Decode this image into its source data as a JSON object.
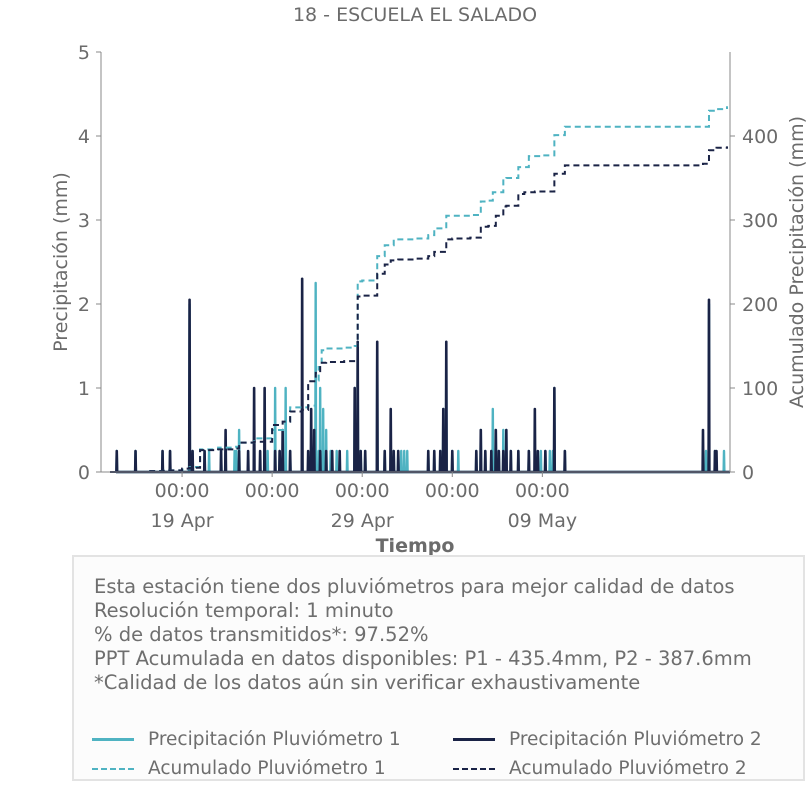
{
  "chart_data": {
    "type": "line",
    "title": "18 - ESCUELA EL SALADO",
    "xlabel": "Tiempo",
    "ylabel": "Precipitación (mm)",
    "y2label": "Acumulado Precipitación (mm)",
    "ylim": [
      0,
      5
    ],
    "y2lim": [
      0,
      500
    ],
    "yticks": [
      0,
      1,
      2,
      3,
      4,
      5
    ],
    "y2ticks": [
      0,
      100,
      200,
      300,
      400
    ],
    "xlim": [
      "2023-04-14T12:00",
      "2023-05-19T10:00"
    ],
    "xticks": [
      {
        "x": "2023-04-19T00:00",
        "label": "00:00",
        "sub": "19 Apr"
      },
      {
        "x": "2023-04-24T00:00",
        "label": "00:00",
        "sub": ""
      },
      {
        "x": "2023-04-29T00:00",
        "label": "00:00",
        "sub": "29 Apr"
      },
      {
        "x": "2023-05-04T00:00",
        "label": "00:00",
        "sub": ""
      },
      {
        "x": "2023-05-09T00:00",
        "label": "00:00",
        "sub": "09 May"
      }
    ],
    "grid": false,
    "series": [
      {
        "name": "Precipitación Pluviómetro 1",
        "axis": "left",
        "style": "solid",
        "color": "#4fb3c2",
        "points": [
          [
            "2023-04-15T09:00",
            0.25
          ],
          [
            "2023-04-16T10:00",
            0.25
          ],
          [
            "2023-04-17T22:00",
            0.25
          ],
          [
            "2023-04-18T08:00",
            0.25
          ],
          [
            "2023-04-19T10:00",
            2.0
          ],
          [
            "2023-04-19T14:00",
            0.25
          ],
          [
            "2023-04-20T06:00",
            0.25
          ],
          [
            "2023-04-20T12:00",
            0.25
          ],
          [
            "2023-04-21T04:00",
            0.25
          ],
          [
            "2023-04-21T10:00",
            0.25
          ],
          [
            "2023-04-21T22:00",
            0.25
          ],
          [
            "2023-04-22T00:00",
            0.25
          ],
          [
            "2023-04-22T04:00",
            0.5
          ],
          [
            "2023-04-23T14:00",
            0.25
          ],
          [
            "2023-04-23T18:00",
            0.25
          ],
          [
            "2023-04-24T04:00",
            1.0
          ],
          [
            "2023-04-24T10:00",
            0.25
          ],
          [
            "2023-04-24T14:00",
            0.25
          ],
          [
            "2023-04-24T18:00",
            1.0
          ],
          [
            "2023-04-25T00:00",
            0.25
          ],
          [
            "2023-04-25T16:00",
            0.25
          ],
          [
            "2023-04-26T10:00",
            2.25
          ],
          [
            "2023-04-26T14:00",
            0.25
          ],
          [
            "2023-04-26T16:00",
            1.0
          ],
          [
            "2023-04-26T20:00",
            0.75
          ],
          [
            "2023-04-27T00:00",
            0.5
          ],
          [
            "2023-04-27T06:00",
            0.25
          ],
          [
            "2023-04-27T14:00",
            0.25
          ],
          [
            "2023-04-28T04:00",
            0.25
          ],
          [
            "2023-04-28T14:00",
            1.0
          ],
          [
            "2023-04-28T18:00",
            1.5
          ],
          [
            "2023-04-28T22:00",
            0.25
          ],
          [
            "2023-04-29T04:00",
            0.25
          ],
          [
            "2023-04-29T20:00",
            1.5
          ],
          [
            "2023-04-30T06:00",
            0.25
          ],
          [
            "2023-04-30T18:00",
            0.25
          ],
          [
            "2023-05-01T00:00",
            0.25
          ],
          [
            "2023-05-01T04:00",
            0.25
          ],
          [
            "2023-05-01T08:00",
            0.25
          ],
          [
            "2023-05-01T12:00",
            0.25
          ],
          [
            "2023-05-02T16:00",
            0.25
          ],
          [
            "2023-05-03T00:00",
            0.25
          ],
          [
            "2023-05-03T08:00",
            0.25
          ],
          [
            "2023-05-03T12:00",
            0.75
          ],
          [
            "2023-05-03T16:00",
            1.5
          ],
          [
            "2023-05-04T00:00",
            0.25
          ],
          [
            "2023-05-04T08:00",
            0.25
          ],
          [
            "2023-05-05T08:00",
            0.25
          ],
          [
            "2023-05-05T14:00",
            0.5
          ],
          [
            "2023-05-05T20:00",
            0.25
          ],
          [
            "2023-05-06T04:00",
            0.25
          ],
          [
            "2023-05-06T06:00",
            0.75
          ],
          [
            "2023-05-06T10:00",
            0.5
          ],
          [
            "2023-05-06T14:00",
            0.25
          ],
          [
            "2023-05-06T20:00",
            0.5
          ],
          [
            "2023-05-07T00:00",
            0.5
          ],
          [
            "2023-05-07T06:00",
            0.25
          ],
          [
            "2023-05-07T16:00",
            0.25
          ],
          [
            "2023-05-08T06:00",
            0.25
          ],
          [
            "2023-05-08T14:00",
            0.25
          ],
          [
            "2023-05-08T22:00",
            0.25
          ],
          [
            "2023-05-09T04:00",
            0.25
          ],
          [
            "2023-05-09T10:00",
            0.25
          ],
          [
            "2023-05-09T14:00",
            0.25
          ],
          [
            "2023-05-09T16:00",
            1.0
          ],
          [
            "2023-05-10T06:00",
            0.25
          ],
          [
            "2023-05-18T02:00",
            0.25
          ],
          [
            "2023-05-18T06:00",
            2.0
          ],
          [
            "2023-05-18T14:00",
            0.25
          ],
          [
            "2023-05-19T02:00",
            0.25
          ]
        ]
      },
      {
        "name": "Precipitación Pluviómetro 2",
        "axis": "left",
        "style": "solid",
        "color": "#1a2346",
        "points": [
          [
            "2023-04-15T09:00",
            0.25
          ],
          [
            "2023-04-16T10:00",
            0.25
          ],
          [
            "2023-04-17T22:00",
            0.25
          ],
          [
            "2023-04-18T08:00",
            0.25
          ],
          [
            "2023-04-19T10:00",
            2.05
          ],
          [
            "2023-04-19T14:00",
            0.25
          ],
          [
            "2023-04-20T06:00",
            0.25
          ],
          [
            "2023-04-21T04:00",
            0.25
          ],
          [
            "2023-04-21T10:00",
            0.5
          ],
          [
            "2023-04-22T04:00",
            0.25
          ],
          [
            "2023-04-22T16:00",
            0.25
          ],
          [
            "2023-04-23T00:00",
            1.0
          ],
          [
            "2023-04-23T08:00",
            0.25
          ],
          [
            "2023-04-23T14:00",
            1.0
          ],
          [
            "2023-04-24T04:00",
            0.25
          ],
          [
            "2023-04-24T10:00",
            0.25
          ],
          [
            "2023-04-24T14:00",
            0.5
          ],
          [
            "2023-04-25T00:00",
            0.25
          ],
          [
            "2023-04-25T16:00",
            2.3
          ],
          [
            "2023-04-26T00:00",
            0.25
          ],
          [
            "2023-04-26T04:00",
            0.75
          ],
          [
            "2023-04-26T08:00",
            0.5
          ],
          [
            "2023-04-26T16:00",
            0.25
          ],
          [
            "2023-04-27T00:00",
            0.25
          ],
          [
            "2023-04-27T08:00",
            0.25
          ],
          [
            "2023-04-27T18:00",
            0.25
          ],
          [
            "2023-04-28T14:00",
            1.0
          ],
          [
            "2023-04-28T18:00",
            1.55
          ],
          [
            "2023-04-28T22:00",
            0.25
          ],
          [
            "2023-04-29T04:00",
            0.25
          ],
          [
            "2023-04-29T20:00",
            1.55
          ],
          [
            "2023-04-30T06:00",
            0.25
          ],
          [
            "2023-04-30T14:00",
            0.75
          ],
          [
            "2023-04-30T18:00",
            0.25
          ],
          [
            "2023-05-01T00:00",
            0.25
          ],
          [
            "2023-05-02T16:00",
            0.25
          ],
          [
            "2023-05-03T00:00",
            0.25
          ],
          [
            "2023-05-03T08:00",
            0.25
          ],
          [
            "2023-05-03T12:00",
            0.75
          ],
          [
            "2023-05-03T16:00",
            1.55
          ],
          [
            "2023-05-04T00:00",
            0.25
          ],
          [
            "2023-05-05T08:00",
            0.25
          ],
          [
            "2023-05-05T14:00",
            0.5
          ],
          [
            "2023-05-05T20:00",
            0.25
          ],
          [
            "2023-05-06T04:00",
            0.25
          ],
          [
            "2023-05-06T10:00",
            0.5
          ],
          [
            "2023-05-06T14:00",
            0.25
          ],
          [
            "2023-05-06T20:00",
            0.25
          ],
          [
            "2023-05-07T00:00",
            0.5
          ],
          [
            "2023-05-07T06:00",
            0.25
          ],
          [
            "2023-05-07T16:00",
            0.25
          ],
          [
            "2023-05-08T06:00",
            0.25
          ],
          [
            "2023-05-08T14:00",
            0.75
          ],
          [
            "2023-05-08T18:00",
            0.25
          ],
          [
            "2023-05-09T04:00",
            0.25
          ],
          [
            "2023-05-09T16:00",
            1.0
          ],
          [
            "2023-05-10T06:00",
            0.25
          ],
          [
            "2023-05-17T22:00",
            0.5
          ],
          [
            "2023-05-18T06:00",
            2.05
          ],
          [
            "2023-05-18T14:00",
            0.25
          ],
          [
            "2023-05-18T16:00",
            0.25
          ]
        ]
      },
      {
        "name": "Acumulado Pluviómetro 1",
        "axis": "right",
        "style": "dashed",
        "color": "#4fb3c2",
        "points": [
          [
            "2023-04-15T00:00",
            0
          ],
          [
            "2023-04-16T00:00",
            0
          ],
          [
            "2023-04-17T00:00",
            1
          ],
          [
            "2023-04-18T00:00",
            2
          ],
          [
            "2023-04-19T00:00",
            3
          ],
          [
            "2023-04-19T10:00",
            6
          ],
          [
            "2023-04-20T00:00",
            27
          ],
          [
            "2023-04-21T00:00",
            29
          ],
          [
            "2023-04-22T00:00",
            30
          ],
          [
            "2023-04-22T04:00",
            35
          ],
          [
            "2023-04-23T00:00",
            40
          ],
          [
            "2023-04-24T00:00",
            50
          ],
          [
            "2023-04-24T18:00",
            60
          ],
          [
            "2023-04-25T00:00",
            77
          ],
          [
            "2023-04-26T00:00",
            79
          ],
          [
            "2023-04-26T10:00",
            109
          ],
          [
            "2023-04-26T14:00",
            125
          ],
          [
            "2023-04-26T18:00",
            145
          ],
          [
            "2023-04-27T00:00",
            147
          ],
          [
            "2023-04-28T00:00",
            148
          ],
          [
            "2023-04-28T14:00",
            150
          ],
          [
            "2023-04-28T18:00",
            227
          ],
          [
            "2023-04-29T00:00",
            228
          ],
          [
            "2023-04-29T20:00",
            257
          ],
          [
            "2023-04-30T06:00",
            270
          ],
          [
            "2023-04-30T18:00",
            277
          ],
          [
            "2023-05-01T00:00",
            277
          ],
          [
            "2023-05-02T00:00",
            278
          ],
          [
            "2023-05-02T16:00",
            282
          ],
          [
            "2023-05-03T00:00",
            290
          ],
          [
            "2023-05-03T16:00",
            305
          ],
          [
            "2023-05-04T00:00",
            305
          ],
          [
            "2023-05-05T00:00",
            306
          ],
          [
            "2023-05-05T14:00",
            322
          ],
          [
            "2023-05-06T00:00",
            323
          ],
          [
            "2023-05-06T06:00",
            333
          ],
          [
            "2023-05-06T20:00",
            349
          ],
          [
            "2023-05-07T00:00",
            350
          ],
          [
            "2023-05-07T16:00",
            363
          ],
          [
            "2023-05-08T06:00",
            376
          ],
          [
            "2023-05-08T22:00",
            377
          ],
          [
            "2023-05-09T16:00",
            401
          ],
          [
            "2023-05-10T06:00",
            411
          ],
          [
            "2023-05-12T00:00",
            411
          ],
          [
            "2023-05-15T00:00",
            411
          ],
          [
            "2023-05-18T00:00",
            411
          ],
          [
            "2023-05-18T06:00",
            430
          ],
          [
            "2023-05-18T14:00",
            432
          ],
          [
            "2023-05-19T06:00",
            435.4
          ]
        ]
      },
      {
        "name": "Acumulado Pluviómetro 2",
        "axis": "right",
        "style": "dashed",
        "color": "#1a2346",
        "points": [
          [
            "2023-04-15T00:00",
            0
          ],
          [
            "2023-04-17T00:00",
            1
          ],
          [
            "2023-04-18T00:00",
            2
          ],
          [
            "2023-04-19T00:00",
            4
          ],
          [
            "2023-04-19T10:00",
            5
          ],
          [
            "2023-04-20T00:00",
            26
          ],
          [
            "2023-04-21T00:00",
            27
          ],
          [
            "2023-04-22T00:00",
            28
          ],
          [
            "2023-04-22T04:00",
            35
          ],
          [
            "2023-04-23T00:00",
            36
          ],
          [
            "2023-04-24T00:00",
            56
          ],
          [
            "2023-04-24T14:00",
            60
          ],
          [
            "2023-04-25T00:00",
            72
          ],
          [
            "2023-04-25T16:00",
            74
          ],
          [
            "2023-04-26T00:00",
            108
          ],
          [
            "2023-04-26T10:00",
            118
          ],
          [
            "2023-04-26T16:00",
            130
          ],
          [
            "2023-04-27T00:00",
            131
          ],
          [
            "2023-04-28T00:00",
            132
          ],
          [
            "2023-04-28T18:00",
            209
          ],
          [
            "2023-04-29T00:00",
            210
          ],
          [
            "2023-04-29T20:00",
            236
          ],
          [
            "2023-04-30T06:00",
            247
          ],
          [
            "2023-04-30T14:00",
            252
          ],
          [
            "2023-05-01T00:00",
            253
          ],
          [
            "2023-05-02T00:00",
            254
          ],
          [
            "2023-05-02T16:00",
            257
          ],
          [
            "2023-05-03T00:00",
            262
          ],
          [
            "2023-05-03T16:00",
            277
          ],
          [
            "2023-05-04T00:00",
            278
          ],
          [
            "2023-05-05T00:00",
            279
          ],
          [
            "2023-05-05T14:00",
            292
          ],
          [
            "2023-05-06T00:00",
            293
          ],
          [
            "2023-05-06T10:00",
            305
          ],
          [
            "2023-05-06T20:00",
            316
          ],
          [
            "2023-05-07T00:00",
            317
          ],
          [
            "2023-05-07T16:00",
            331
          ],
          [
            "2023-05-08T00:00",
            333
          ],
          [
            "2023-05-08T14:00",
            334
          ],
          [
            "2023-05-09T16:00",
            355
          ],
          [
            "2023-05-10T06:00",
            365
          ],
          [
            "2023-05-12T00:00",
            365
          ],
          [
            "2023-05-15T00:00",
            365
          ],
          [
            "2023-05-17T22:00",
            367
          ],
          [
            "2023-05-18T06:00",
            383
          ],
          [
            "2023-05-18T16:00",
            386
          ],
          [
            "2023-05-19T06:00",
            387.6
          ]
        ]
      }
    ],
    "legend_placement": "bottom"
  },
  "info": {
    "line1": "Esta estación tiene dos pluviómetros para mejor calidad de datos",
    "line2": "Resolución temporal: 1 minuto",
    "line3": "% de datos transmitidos*: 97.52%",
    "line4": "PPT Acumulada en datos disponibles: P1 - 435.4mm, P2 - 387.6mm",
    "line5": "*Calidad de los datos aún sin verificar exhaustivamente"
  },
  "legend": {
    "p1": "Precipitación Pluviómetro 1",
    "p2": "Precipitación Pluviómetro 2",
    "a1": "Acumulado Pluviómetro 1",
    "a2": "Acumulado Pluviómetro 2"
  },
  "colors": {
    "p1": "#4fb3c2",
    "p2": "#1a2346",
    "text": "#6b6b6b"
  }
}
